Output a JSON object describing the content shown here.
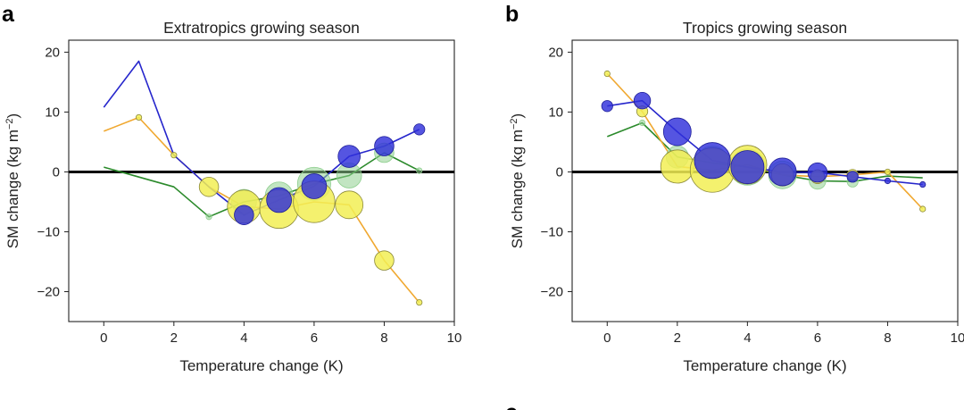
{
  "figure": {
    "partial_letter": "c"
  },
  "chart_data": [
    {
      "type": "line",
      "panel_letter": "a",
      "title": "Extratropics growing season",
      "xlabel": "Temperature change (K)",
      "ylabel": "SM change (kg m",
      "ylabel_sup": "−2",
      "ylabel_end": ")",
      "xlim": [
        -1,
        10
      ],
      "ylim": [
        -25,
        22
      ],
      "xticks": [
        0,
        2,
        4,
        6,
        8,
        10
      ],
      "yticks": [
        20,
        10,
        0,
        -10,
        -20
      ],
      "ytick_labels": [
        "20",
        "10",
        "0",
        "−10",
        "−20"
      ],
      "zero_line": true,
      "series": [
        {
          "name": "green",
          "color": "#2b8a2b",
          "points": [
            {
              "x": 0,
              "y": 0.8
            },
            {
              "x": 2,
              "y": -2.5
            },
            {
              "x": 3,
              "y": -7.5,
              "size": 3
            },
            {
              "x": 4,
              "y": -5.0,
              "size": 9
            },
            {
              "x": 5,
              "y": -4.0,
              "size": 10
            },
            {
              "x": 6,
              "y": -2.0,
              "size": 12
            },
            {
              "x": 7,
              "y": -0.6,
              "size": 9
            },
            {
              "x": 8,
              "y": 3.2,
              "size": 7
            },
            {
              "x": 9,
              "y": 0.2,
              "size": 3
            }
          ]
        },
        {
          "name": "orange",
          "color": "#f0a830",
          "points": [
            {
              "x": 0,
              "y": 6.8
            },
            {
              "x": 1,
              "y": 9.1,
              "size": 3
            },
            {
              "x": 2,
              "y": 2.8,
              "size": 3
            },
            {
              "x": 3,
              "y": -2.5,
              "size": 7
            },
            {
              "x": 4,
              "y": -5.8,
              "size": 12
            },
            {
              "x": 5,
              "y": -6.2,
              "size": 14
            },
            {
              "x": 6,
              "y": -5.0,
              "size": 15
            },
            {
              "x": 7,
              "y": -5.5,
              "size": 10
            },
            {
              "x": 8,
              "y": -14.8,
              "size": 7
            },
            {
              "x": 9,
              "y": -21.8,
              "size": 3
            }
          ]
        },
        {
          "name": "blue",
          "color": "#2626cc",
          "points": [
            {
              "x": 0,
              "y": 10.8
            },
            {
              "x": 1,
              "y": 18.5
            },
            {
              "x": 2,
              "y": 2.8
            },
            {
              "x": 3,
              "y": -2.5
            },
            {
              "x": 4,
              "y": -7.2,
              "size": 7
            },
            {
              "x": 5,
              "y": -4.7,
              "size": 9
            },
            {
              "x": 6,
              "y": -2.4,
              "size": 9
            },
            {
              "x": 7,
              "y": 2.6,
              "size": 8
            },
            {
              "x": 8,
              "y": 4.3,
              "size": 7
            },
            {
              "x": 9,
              "y": 7.1,
              "size": 4
            }
          ]
        }
      ]
    },
    {
      "type": "line",
      "panel_letter": "b",
      "title": "Tropics growing season",
      "xlabel": "Temperature change (K)",
      "ylabel": "SM change (kg m",
      "ylabel_sup": "−2",
      "ylabel_end": ")",
      "xlim": [
        -1,
        10
      ],
      "ylim": [
        -25,
        22
      ],
      "xticks": [
        0,
        2,
        4,
        6,
        8,
        10
      ],
      "yticks": [
        20,
        10,
        0,
        -10,
        -20
      ],
      "ytick_labels": [
        "20",
        "10",
        "0",
        "−10",
        "−20"
      ],
      "zero_line": true,
      "series": [
        {
          "name": "green",
          "color": "#2b8a2b",
          "points": [
            {
              "x": 0,
              "y": 5.9
            },
            {
              "x": 1,
              "y": 8.2,
              "size": 3
            },
            {
              "x": 2,
              "y": 2.5,
              "size": 8
            },
            {
              "x": 3,
              "y": 1.5,
              "size": 12
            },
            {
              "x": 4,
              "y": 0.8,
              "size": 13
            },
            {
              "x": 5,
              "y": -0.5,
              "size": 10
            },
            {
              "x": 6,
              "y": -1.5,
              "size": 6
            },
            {
              "x": 7,
              "y": -1.6,
              "size": 4
            },
            {
              "x": 8,
              "y": -0.7
            },
            {
              "x": 9,
              "y": -1.0
            }
          ]
        },
        {
          "name": "orange",
          "color": "#f0a830",
          "points": [
            {
              "x": 0,
              "y": 16.4,
              "size": 3
            },
            {
              "x": 1,
              "y": 10.1,
              "size": 4
            },
            {
              "x": 2,
              "y": 0.9,
              "size": 12
            },
            {
              "x": 3,
              "y": 0.3,
              "size": 16
            },
            {
              "x": 4,
              "y": 1.2,
              "size": 14
            },
            {
              "x": 5,
              "y": -0.5,
              "size": 8
            },
            {
              "x": 6,
              "y": -0.8,
              "size": 5
            },
            {
              "x": 7,
              "y": -0.5,
              "size": 4
            },
            {
              "x": 8,
              "y": 0.0,
              "size": 3
            },
            {
              "x": 9,
              "y": -6.2,
              "size": 3
            }
          ]
        },
        {
          "name": "blue",
          "color": "#2626cc",
          "points": [
            {
              "x": 0,
              "y": 11.0,
              "size": 4
            },
            {
              "x": 1,
              "y": 11.9,
              "size": 6
            },
            {
              "x": 2,
              "y": 6.7,
              "size": 10
            },
            {
              "x": 3,
              "y": 1.9,
              "size": 13
            },
            {
              "x": 4,
              "y": 0.8,
              "size": 12
            },
            {
              "x": 5,
              "y": 0.0,
              "size": 10
            },
            {
              "x": 6,
              "y": -0.1,
              "size": 7
            },
            {
              "x": 7,
              "y": -0.8,
              "size": 4
            },
            {
              "x": 8,
              "y": -1.5,
              "size": 3
            },
            {
              "x": 9,
              "y": -2.1,
              "size": 3
            }
          ]
        }
      ]
    }
  ]
}
